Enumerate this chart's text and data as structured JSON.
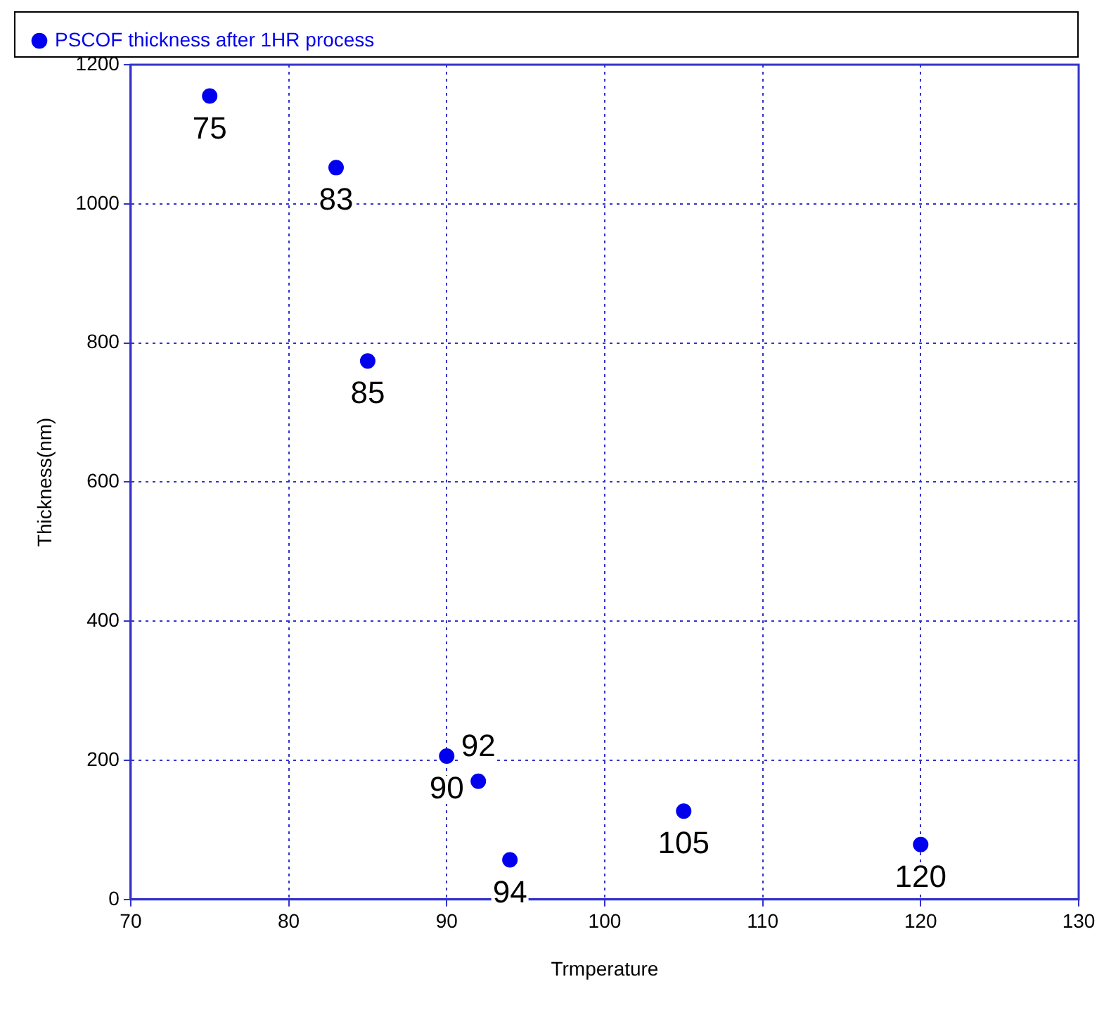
{
  "chart_data": {
    "type": "scatter",
    "xlabel": "Trmperature",
    "ylabel": "Thickness(nm)",
    "x": [
      75,
      83,
      85,
      90,
      92,
      94,
      105,
      120
    ],
    "series": [
      {
        "name": "PSCOF thickness after 1HR process",
        "color": "#0000ee",
        "values": [
          1155,
          1052,
          774,
          206,
          170,
          57,
          127,
          79
        ]
      }
    ],
    "xlim": [
      70,
      130
    ],
    "xticks": [
      70,
      80,
      90,
      100,
      110,
      120,
      130
    ],
    "ylim": [
      0,
      1200
    ],
    "yticks": [
      0,
      200,
      400,
      600,
      800,
      1000,
      1200
    ],
    "grid": true,
    "legend": "top left",
    "marker": "circle",
    "annotations": [
      {
        "text": "75",
        "x": 75,
        "y": 1155
      },
      {
        "text": "83",
        "x": 83,
        "y": 1052
      },
      {
        "text": "85",
        "x": 85,
        "y": 774
      },
      {
        "text": "90",
        "x": 90,
        "y": 206
      },
      {
        "text": "92",
        "x": 92,
        "y": 170
      },
      {
        "text": "94",
        "x": 94,
        "y": 57
      },
      {
        "text": "105",
        "x": 105,
        "y": 127
      },
      {
        "text": "120",
        "x": 120,
        "y": 79
      }
    ]
  }
}
